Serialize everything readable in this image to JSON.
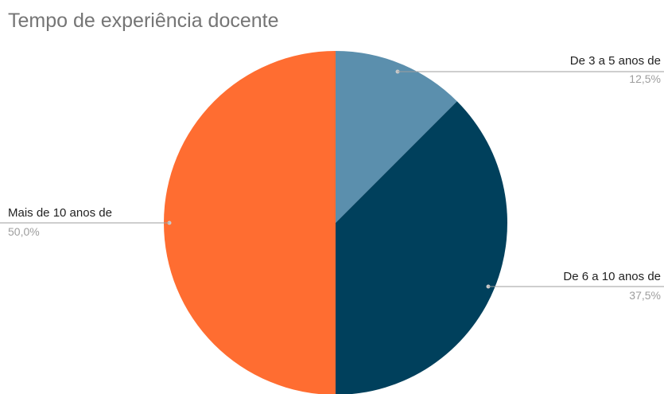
{
  "chart_data": {
    "type": "pie",
    "title": "Tempo de experiência docente",
    "slices": [
      {
        "label": "De 3 a 5 anos de",
        "value": 12.5,
        "percent_label": "12,5%",
        "color": "#5b8fad"
      },
      {
        "label": "De 6 a 10 anos de",
        "value": 37.5,
        "percent_label": "37,5%",
        "color": "#00405c"
      },
      {
        "label": "Mais de 10 anos de",
        "value": 50.0,
        "percent_label": "50,0%",
        "color": "#ff6d31"
      }
    ],
    "legend": "none"
  }
}
